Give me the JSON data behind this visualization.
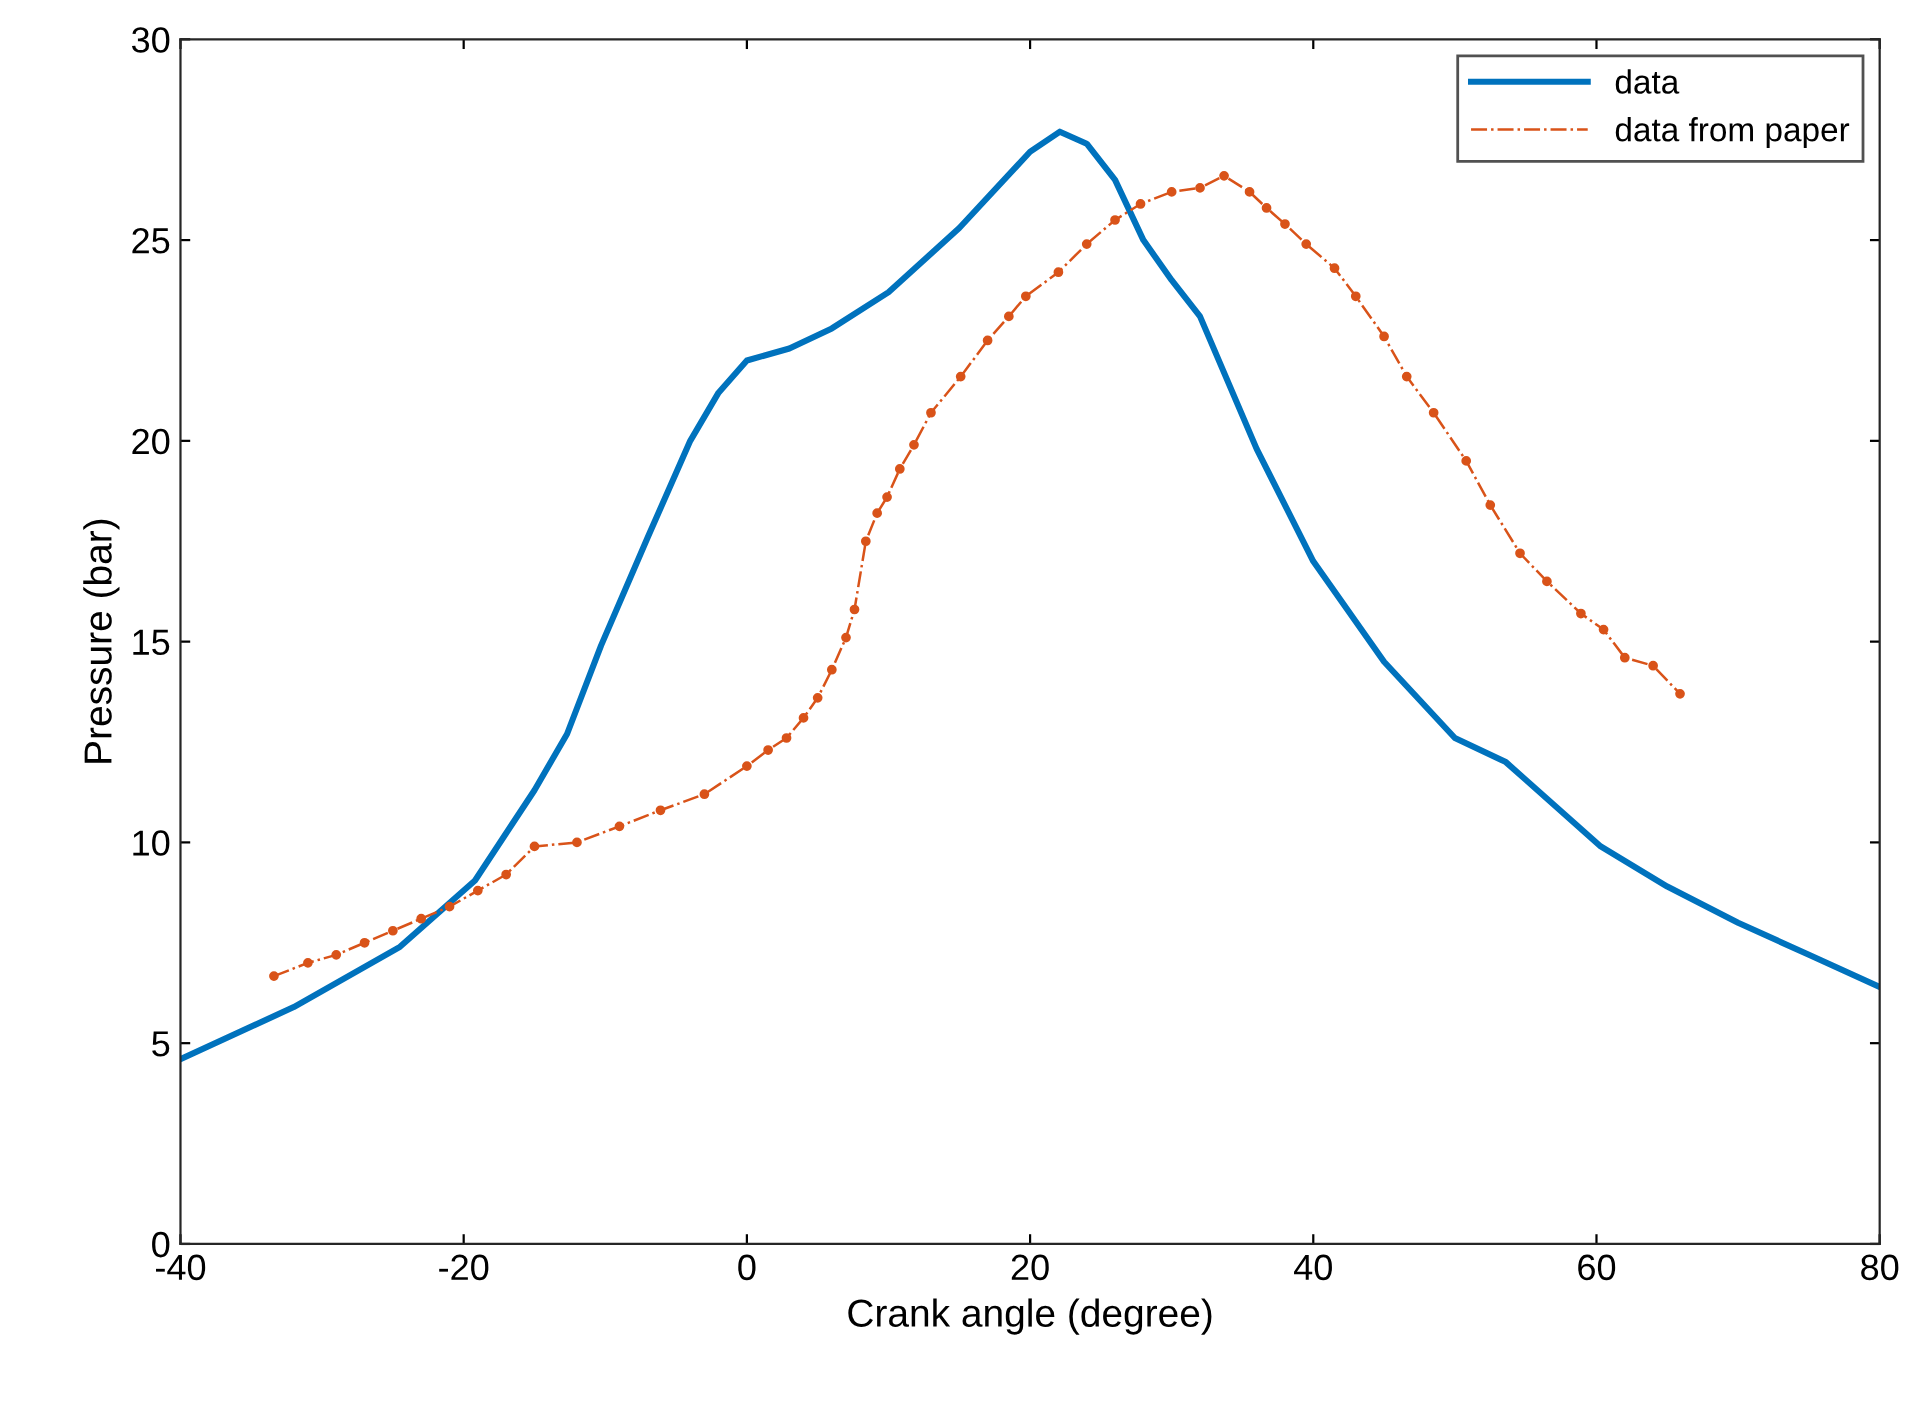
{
  "chart_data": {
    "type": "line",
    "xlabel": "Crank angle (degree)",
    "ylabel": "Pressure (bar)",
    "xlim": [
      -40,
      80
    ],
    "xticks": [
      -40,
      -20,
      0,
      20,
      40,
      60,
      80
    ],
    "ylim": [
      0,
      30
    ],
    "yticks": [
      0,
      5,
      10,
      15,
      20,
      25,
      30
    ],
    "grid": false,
    "legend": "top right",
    "series": [
      {
        "name": "data",
        "color": "#0072bd",
        "line_style": "solid",
        "marker": "none",
        "x": [
          -40,
          -32,
          -24.5,
          -19.2,
          -15,
          -12.7,
          -10.3,
          -7,
          -4,
          -2,
          0,
          3,
          6,
          10,
          15,
          20,
          22.1,
          24,
          26,
          28,
          30,
          32,
          36,
          40,
          45,
          50,
          53.6,
          60.3,
          65,
          70,
          75,
          80
        ],
        "values": [
          4.6,
          5.9,
          7.4,
          9.05,
          11.3,
          12.7,
          14.9,
          17.6,
          20.0,
          21.2,
          22.0,
          22.3,
          22.8,
          23.7,
          25.3,
          27.2,
          27.7,
          27.4,
          26.5,
          25.0,
          24.0,
          23.1,
          19.8,
          17.0,
          14.5,
          12.6,
          12.0,
          9.9,
          8.9,
          8.0,
          7.2,
          6.4
        ]
      },
      {
        "name": "data from paper",
        "color": "#d95319",
        "line_style": "dashdot",
        "marker": "circle",
        "x": [
          -33.4,
          -31,
          -29,
          -27,
          -25,
          -23,
          -21,
          -19,
          -17,
          -15,
          -12,
          -9,
          -6.1,
          -3,
          0,
          1.5,
          2.8,
          4,
          5,
          6,
          7,
          7.6,
          8.4,
          9.2,
          9.9,
          10.8,
          11.8,
          13,
          15.1,
          17,
          18.5,
          19.7,
          22,
          24,
          26,
          27.8,
          30,
          32,
          33.7,
          35.5,
          36.7,
          38,
          39.5,
          41.5,
          43,
          45,
          46.6,
          48.5,
          50.8,
          52.5,
          54.6,
          56.5,
          58.9,
          60.5,
          62,
          64,
          65.9
        ],
        "values": [
          6.67,
          7.0,
          7.2,
          7.5,
          7.8,
          8.1,
          8.4,
          8.8,
          9.2,
          9.9,
          10.0,
          10.4,
          10.8,
          11.2,
          11.9,
          12.3,
          12.6,
          13.1,
          13.6,
          14.3,
          15.1,
          15.8,
          17.5,
          18.2,
          18.6,
          19.3,
          19.9,
          20.7,
          21.6,
          22.5,
          23.1,
          23.6,
          24.2,
          24.9,
          25.5,
          25.9,
          26.2,
          26.3,
          26.6,
          26.2,
          25.8,
          25.4,
          24.9,
          24.3,
          23.6,
          22.6,
          21.6,
          20.7,
          19.5,
          18.4,
          17.2,
          16.5,
          15.7,
          15.3,
          14.6,
          14.4,
          13.7
        ]
      }
    ]
  }
}
